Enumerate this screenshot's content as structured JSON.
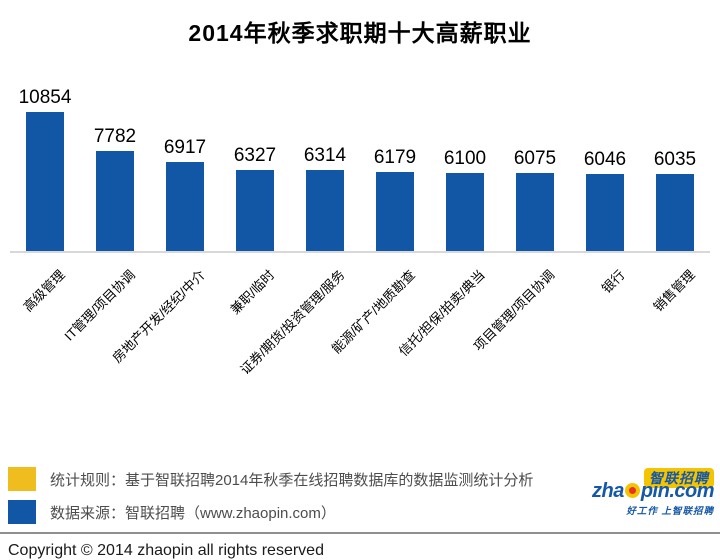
{
  "title": "2014年秋季求职期十大高薪职业",
  "chart_data": {
    "type": "bar",
    "title": "2014年秋季求职期十大高薪职业",
    "categories": [
      "高级管理",
      "IT管理/项目协调",
      "房地产开发/经纪/中介",
      "兼职/临时",
      "证券/期货/投资管理/服务",
      "能源/矿产/地质勘查",
      "信托/担保/拍卖/典当",
      "项目管理/项目协调",
      "银行",
      "销售管理"
    ],
    "values": [
      10854,
      7782,
      6917,
      6327,
      6314,
      6179,
      6100,
      6075,
      6046,
      6035
    ],
    "value_labels": true,
    "bar_color": "#1257A5",
    "xlabel": "",
    "ylabel": "",
    "ylim": [
      0,
      10854
    ],
    "grid": false,
    "legend_position": "none",
    "category_label_rotation_deg": -45
  },
  "footer": {
    "legend": [
      {
        "color": "#EFBE1E",
        "text": "统计规则：基于智联招聘2014年秋季在线招聘数据库的数据监测统计分析"
      },
      {
        "color": "#1257A5",
        "text": "数据来源：智联招聘（www.zhaopin.com）"
      }
    ],
    "copyright": "Copyright  ©  2014 zhaopin all rights reserved"
  },
  "logo": {
    "brand_cn": "智联招聘",
    "brand_en_prefix": "zha",
    "brand_en_suffix": "pin.com",
    "tagline": "好工作  上智联招聘",
    "brand_blue": "#1658A8",
    "brand_yellow": "#F5C400",
    "dot_red": "#E63324"
  }
}
